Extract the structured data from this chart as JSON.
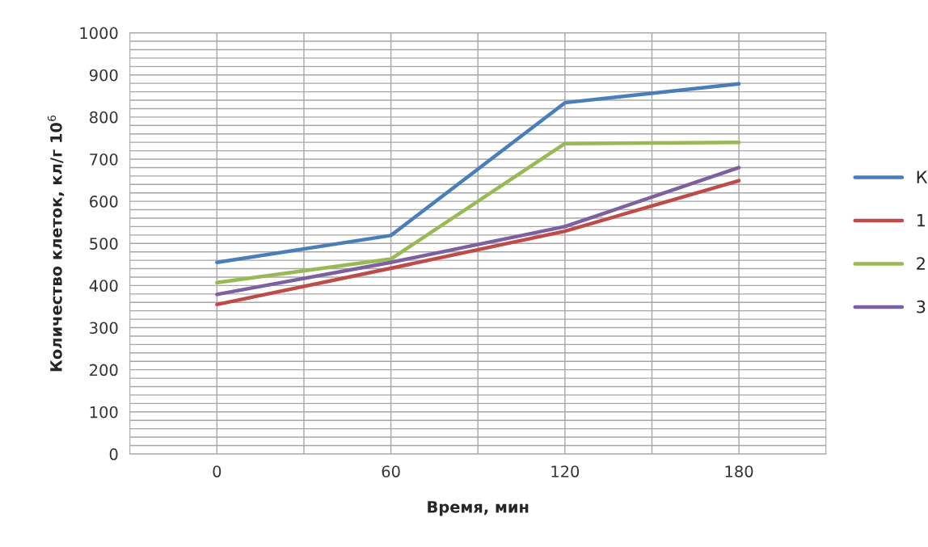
{
  "chart_data": {
    "type": "line",
    "xlabel": "Время, мин",
    "ylabel": "Количество клеток, кл/г 10$^{6}$",
    "x": [
      0,
      60,
      120,
      180
    ],
    "series": [
      {
        "name": "К",
        "color": "#4a7ebb",
        "values": [
          455,
          519,
          834,
          879
        ]
      },
      {
        "name": "1",
        "color": "#be4b48",
        "values": [
          355,
          441,
          529,
          649
        ]
      },
      {
        "name": "2",
        "color": "#98b954",
        "values": [
          407,
          463,
          737,
          740
        ]
      },
      {
        "name": "3",
        "color": "#7d60a0",
        "values": [
          379,
          455,
          540,
          680
        ]
      }
    ],
    "xlim": [
      -30,
      210
    ],
    "xticks": [
      0,
      {
        "value": 30,
        "label": null
      },
      60,
      {
        "value": 90,
        "label": null
      },
      120,
      {
        "value": 150,
        "label": null
      },
      180
    ],
    "ylim": [
      0,
      1000
    ],
    "yticks": [
      0,
      {
        "value": 20,
        "label": null
      },
      {
        "value": 40,
        "label": null
      },
      {
        "value": 60,
        "label": null
      },
      {
        "value": 80,
        "label": null
      },
      100,
      {
        "value": 120,
        "label": null
      },
      {
        "value": 140,
        "label": null
      },
      {
        "value": 160,
        "label": null
      },
      {
        "value": 180,
        "label": null
      },
      200,
      {
        "value": 220,
        "label": null
      },
      {
        "value": 240,
        "label": null
      },
      {
        "value": 260,
        "label": null
      },
      {
        "value": 280,
        "label": null
      },
      300,
      {
        "value": 320,
        "label": null
      },
      {
        "value": 340,
        "label": null
      },
      {
        "value": 360,
        "label": null
      },
      {
        "value": 380,
        "label": null
      },
      400,
      {
        "value": 420,
        "label": null
      },
      {
        "value": 440,
        "label": null
      },
      {
        "value": 460,
        "label": null
      },
      {
        "value": 480,
        "label": null
      },
      500,
      {
        "value": 520,
        "label": null
      },
      {
        "value": 540,
        "label": null
      },
      {
        "value": 560,
        "label": null
      },
      {
        "value": 580,
        "label": null
      },
      600,
      {
        "value": 620,
        "label": null
      },
      {
        "value": 640,
        "label": null
      },
      {
        "value": 660,
        "label": null
      },
      {
        "value": 680,
        "label": null
      },
      700,
      {
        "value": 720,
        "label": null
      },
      {
        "value": 740,
        "label": null
      },
      {
        "value": 760,
        "label": null
      },
      {
        "value": 780,
        "label": null
      },
      800,
      {
        "value": 820,
        "label": null
      },
      {
        "value": 840,
        "label": null
      },
      {
        "value": 860,
        "label": null
      },
      {
        "value": 880,
        "label": null
      },
      900,
      {
        "value": 920,
        "label": null
      },
      {
        "value": 940,
        "label": null
      },
      {
        "value": 960,
        "label": null
      },
      {
        "value": 980,
        "label": null
      },
      1000
    ],
    "grid": true,
    "legend": "right",
    "marker": "none",
    "line_style": "solid"
  }
}
